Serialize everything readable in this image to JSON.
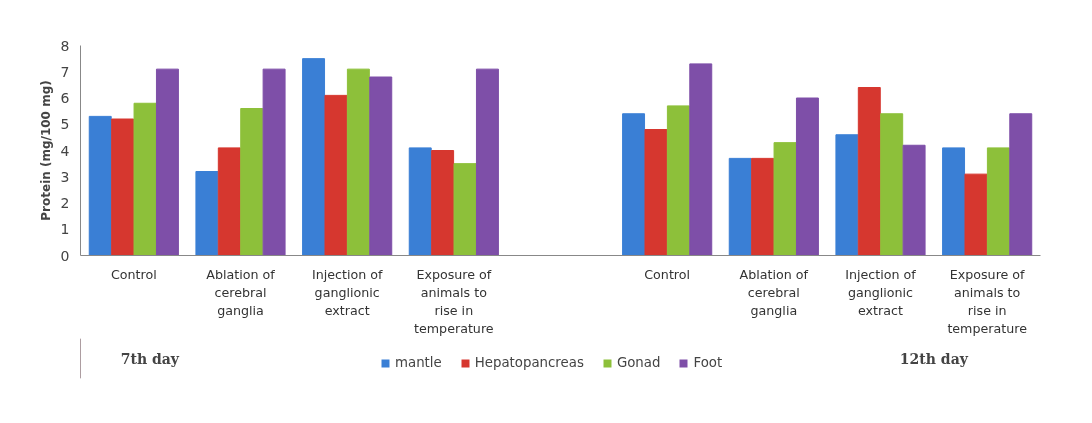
{
  "chart_data": {
    "type": "bar",
    "ylabel": "Protein (mg/100 mg)",
    "categories": [
      "Control",
      "Ablation of\ncerebral\nganglia",
      "Injection of\nganglionic\nextract",
      "Exposure of\nanimals to\nrise in\ntemperature",
      null,
      "Control",
      "Ablation of\ncerebral\nganglia",
      "Injection of\nganglionic\nextract",
      "Exposure of\nanimals to\nrise in\ntemperature"
    ],
    "series": [
      {
        "name": "mantle",
        "color": "#3a7fd5",
        "values": [
          5.3,
          3.2,
          7.5,
          4.1,
          null,
          5.4,
          3.7,
          4.6,
          4.1
        ]
      },
      {
        "name": "Hepatopancreas",
        "color": "#d6372f",
        "values": [
          5.2,
          4.1,
          6.1,
          4.0,
          null,
          4.8,
          3.7,
          6.4,
          3.1
        ]
      },
      {
        "name": "Gonad",
        "color": "#8dc03a",
        "values": [
          5.8,
          5.6,
          7.1,
          3.5,
          null,
          5.7,
          4.3,
          5.4,
          4.1
        ]
      },
      {
        "name": "Foot",
        "color": "#7e4fa8",
        "values": [
          7.1,
          7.1,
          6.8,
          7.1,
          null,
          7.3,
          6.0,
          4.2,
          5.4
        ]
      }
    ],
    "ylim": [
      0,
      8
    ],
    "yticks": [
      0,
      1,
      2,
      3,
      4,
      5,
      6,
      7,
      8
    ],
    "grid": false,
    "legend": "bottom",
    "annotations": [
      "7th day",
      "12th day"
    ]
  }
}
